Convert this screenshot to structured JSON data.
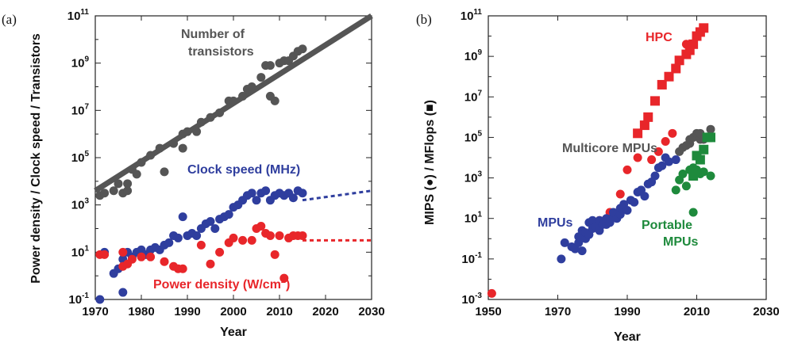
{
  "chart_data": [
    {
      "panel_label": "(a)",
      "type": "scatter",
      "xlabel": "Year",
      "ylabel": "Power density / Clock speed / Transistors",
      "xlim": [
        1970,
        2030
      ],
      "ylim_log10": [
        -1,
        11
      ],
      "y_scale": "log10",
      "x_ticks": [
        1970,
        1980,
        1990,
        2000,
        2010,
        2020,
        2030
      ],
      "y_ticks_log10": [
        -1,
        1,
        3,
        5,
        7,
        9,
        11
      ],
      "colors": {
        "transistors": "#555555",
        "clock": "#2f3e9e",
        "power": "#e8262a"
      },
      "annotations": {
        "transistors_line1": "Number of",
        "transistors_line2": "transistors",
        "clock": "Clock speed (MHz)",
        "power_main": "Power density (W/cm",
        "power_sup": "2",
        "power_close": ")"
      },
      "series": [
        {
          "key": "transistors",
          "points": [
            [
              1971,
              3.4
            ],
            [
              1972,
              3.5
            ],
            [
              1974,
              3.6
            ],
            [
              1975,
              3.9
            ],
            [
              1976,
              3.5
            ],
            [
              1977,
              3.6
            ],
            [
              1977,
              3.9
            ],
            [
              1978,
              4.5
            ],
            [
              1979,
              4.3
            ],
            [
              1980,
              4.8
            ],
            [
              1982,
              5.1
            ],
            [
              1984,
              5.4
            ],
            [
              1985,
              4.4
            ],
            [
              1987,
              5.6
            ],
            [
              1989,
              6.0
            ],
            [
              1989,
              5.4
            ],
            [
              1990,
              6.1
            ],
            [
              1992,
              6.1
            ],
            [
              1993,
              6.5
            ],
            [
              1995,
              6.7
            ],
            [
              1997,
              6.9
            ],
            [
              1999,
              7.4
            ],
            [
              2000,
              7.4
            ],
            [
              2002,
              7.6
            ],
            [
              2003,
              7.9
            ],
            [
              2004,
              8.0
            ],
            [
              2006,
              8.4
            ],
            [
              2007,
              8.9
            ],
            [
              2008,
              7.6
            ],
            [
              2008,
              8.9
            ],
            [
              2009,
              7.4
            ],
            [
              2010,
              9.0
            ],
            [
              2011,
              9.1
            ],
            [
              2012,
              9.1
            ],
            [
              2013,
              9.3
            ],
            [
              2014,
              9.5
            ],
            [
              2015,
              9.6
            ]
          ],
          "trend": [
            [
              1970,
              3.6
            ],
            [
              2030,
              11.0
            ]
          ]
        },
        {
          "key": "clock",
          "points": [
            [
              1971,
              -1.0
            ],
            [
              1972,
              1.0
            ],
            [
              1974,
              0.1
            ],
            [
              1975,
              0.3
            ],
            [
              1976,
              -0.7
            ],
            [
              1976,
              0.7
            ],
            [
              1977,
              1.0
            ],
            [
              1978,
              0.8
            ],
            [
              1979,
              1.0
            ],
            [
              1980,
              1.1
            ],
            [
              1981,
              0.9
            ],
            [
              1982,
              1.1
            ],
            [
              1983,
              1.2
            ],
            [
              1984,
              1.1
            ],
            [
              1985,
              1.3
            ],
            [
              1986,
              1.4
            ],
            [
              1987,
              1.7
            ],
            [
              1988,
              1.6
            ],
            [
              1989,
              2.5
            ],
            [
              1990,
              1.7
            ],
            [
              1991,
              1.8
            ],
            [
              1992,
              1.7
            ],
            [
              1993,
              2.0
            ],
            [
              1994,
              2.2
            ],
            [
              1995,
              2.3
            ],
            [
              1996,
              2.0
            ],
            [
              1997,
              2.4
            ],
            [
              1998,
              2.5
            ],
            [
              1999,
              2.6
            ],
            [
              2000,
              2.9
            ],
            [
              2001,
              3.0
            ],
            [
              2002,
              3.2
            ],
            [
              2003,
              3.4
            ],
            [
              2004,
              3.5
            ],
            [
              2005,
              3.2
            ],
            [
              2006,
              3.5
            ],
            [
              2007,
              3.6
            ],
            [
              2008,
              3.2
            ],
            [
              2009,
              3.4
            ],
            [
              2010,
              3.5
            ],
            [
              2011,
              3.4
            ],
            [
              2012,
              3.5
            ],
            [
              2013,
              3.3
            ],
            [
              2014,
              3.6
            ],
            [
              2015,
              3.5
            ]
          ],
          "trend": [
            [
              2015,
              3.2
            ],
            [
              2030,
              3.6
            ]
          ]
        },
        {
          "key": "power",
          "points": [
            [
              1971,
              0.9
            ],
            [
              1972,
              0.9
            ],
            [
              1976,
              0.4
            ],
            [
              1976,
              1.0
            ],
            [
              1977,
              0.5
            ],
            [
              1978,
              0.7
            ],
            [
              1980,
              0.8
            ],
            [
              1982,
              0.8
            ],
            [
              1985,
              0.6
            ],
            [
              1987,
              0.4
            ],
            [
              1988,
              0.3
            ],
            [
              1989,
              0.3
            ],
            [
              1993,
              1.3
            ],
            [
              1995,
              0.5
            ],
            [
              1997,
              1.0
            ],
            [
              1999,
              1.4
            ],
            [
              2000,
              1.6
            ],
            [
              2002,
              1.5
            ],
            [
              2004,
              1.5
            ],
            [
              2005,
              2.0
            ],
            [
              2006,
              2.1
            ],
            [
              2007,
              1.8
            ],
            [
              2008,
              1.7
            ],
            [
              2009,
              0.9
            ],
            [
              2010,
              1.7
            ],
            [
              2011,
              -0.1
            ],
            [
              2012,
              1.6
            ],
            [
              2013,
              1.7
            ],
            [
              2014,
              1.7
            ],
            [
              2015,
              1.7
            ]
          ],
          "trend": [
            [
              2015,
              1.5
            ],
            [
              2030,
              1.5
            ]
          ]
        }
      ]
    },
    {
      "panel_label": "(b)",
      "type": "scatter",
      "xlabel": "Year",
      "ylabel_main": "MIPS (",
      "ylabel_circle": "●",
      "ylabel_mid": ") / MFlops (",
      "ylabel_square": "■",
      "ylabel_close": ")",
      "xlim": [
        1950,
        2030
      ],
      "ylim_log10": [
        -3,
        11
      ],
      "y_scale": "log10",
      "x_ticks": [
        1950,
        1970,
        1990,
        2010,
        2030
      ],
      "y_ticks_log10": [
        -3,
        -1,
        1,
        3,
        5,
        7,
        9,
        11
      ],
      "colors": {
        "hpc": "#e8262a",
        "mpu": "#2f3e9e",
        "multicore": "#555555",
        "portable": "#1e8a3c"
      },
      "annotations": {
        "hpc": "HPC",
        "multicore": "Multicore MPUs",
        "mpu": "MPUs",
        "portable_line1": "Portable",
        "portable_line2": "MPUs"
      },
      "series": [
        {
          "key": "hpc_mips",
          "marker": "circle",
          "color_key": "hpc",
          "points": [
            [
              1951,
              -2.7
            ],
            [
              1982,
              0.9
            ],
            [
              1985,
              1.3
            ],
            [
              1988,
              2.2
            ],
            [
              1990,
              3.4
            ],
            [
              1993,
              4.0
            ],
            [
              1997,
              3.9
            ],
            [
              1999,
              4.3
            ],
            [
              2001,
              4.8
            ],
            [
              2003,
              5.2
            ],
            [
              2007,
              9.6
            ]
          ]
        },
        {
          "key": "hpc_mflops",
          "marker": "square",
          "color_key": "hpc",
          "points": [
            [
              1993,
              5.2
            ],
            [
              1995,
              5.6
            ],
            [
              1996,
              6.0
            ],
            [
              1998,
              6.8
            ],
            [
              2000,
              7.6
            ],
            [
              2002,
              8.0
            ],
            [
              2004,
              8.4
            ],
            [
              2005,
              8.8
            ],
            [
              2007,
              9.1
            ],
            [
              2008,
              9.3
            ],
            [
              2009,
              9.6
            ],
            [
              2010,
              10.0
            ],
            [
              2011,
              10.2
            ],
            [
              2012,
              10.4
            ]
          ]
        },
        {
          "key": "mpu",
          "marker": "circle",
          "color_key": "mpu",
          "points": [
            [
              1971,
              -1.0
            ],
            [
              1972,
              -0.2
            ],
            [
              1974,
              -0.4
            ],
            [
              1975,
              -0.5
            ],
            [
              1976,
              -0.2
            ],
            [
              1976,
              0.1
            ],
            [
              1977,
              0.4
            ],
            [
              1977,
              -0.6
            ],
            [
              1978,
              0.0
            ],
            [
              1978,
              0.3
            ],
            [
              1979,
              0.8
            ],
            [
              1979,
              0.2
            ],
            [
              1980,
              0.5
            ],
            [
              1980,
              0.9
            ],
            [
              1981,
              0.6
            ],
            [
              1982,
              0.4
            ],
            [
              1982,
              0.9
            ],
            [
              1983,
              0.7
            ],
            [
              1984,
              0.7
            ],
            [
              1984,
              1.0
            ],
            [
              1985,
              0.8
            ],
            [
              1986,
              1.1
            ],
            [
              1986,
              1.3
            ],
            [
              1987,
              1.0
            ],
            [
              1988,
              1.2
            ],
            [
              1988,
              1.5
            ],
            [
              1989,
              1.7
            ],
            [
              1990,
              1.4
            ],
            [
              1991,
              1.9
            ],
            [
              1992,
              1.8
            ],
            [
              1993,
              2.3
            ],
            [
              1994,
              2.4
            ],
            [
              1995,
              2.1
            ],
            [
              1996,
              2.7
            ],
            [
              1997,
              2.8
            ],
            [
              1998,
              3.1
            ],
            [
              1999,
              3.5
            ],
            [
              2000,
              3.6
            ],
            [
              2001,
              4.0
            ],
            [
              2002,
              3.8
            ],
            [
              2004,
              3.9
            ]
          ]
        },
        {
          "key": "multicore",
          "marker": "circle",
          "color_key": "multicore",
          "points": [
            [
              2005,
              4.3
            ],
            [
              2006,
              4.5
            ],
            [
              2007,
              4.6
            ],
            [
              2008,
              4.7
            ],
            [
              2008,
              4.9
            ],
            [
              2009,
              5.0
            ],
            [
              2010,
              5.2
            ],
            [
              2011,
              4.9
            ],
            [
              2011,
              5.2
            ],
            [
              2012,
              4.9
            ],
            [
              2014,
              5.4
            ]
          ]
        },
        {
          "key": "portable_circle",
          "marker": "circle",
          "color_key": "portable",
          "points": [
            [
              2004,
              2.4
            ],
            [
              2005,
              2.9
            ],
            [
              2006,
              3.2
            ],
            [
              2007,
              2.6
            ],
            [
              2008,
              3.4
            ],
            [
              2009,
              1.3
            ],
            [
              2009,
              3.5
            ],
            [
              2010,
              3.4
            ],
            [
              2011,
              3.2
            ],
            [
              2012,
              3.3
            ],
            [
              2014,
              3.1
            ]
          ]
        },
        {
          "key": "portable_square",
          "marker": "square",
          "color_key": "portable",
          "points": [
            [
              2009,
              3.1
            ],
            [
              2010,
              4.1
            ],
            [
              2011,
              3.9
            ],
            [
              2012,
              4.4
            ],
            [
              2013,
              5.0
            ],
            [
              2014,
              5.0
            ]
          ]
        }
      ]
    }
  ]
}
